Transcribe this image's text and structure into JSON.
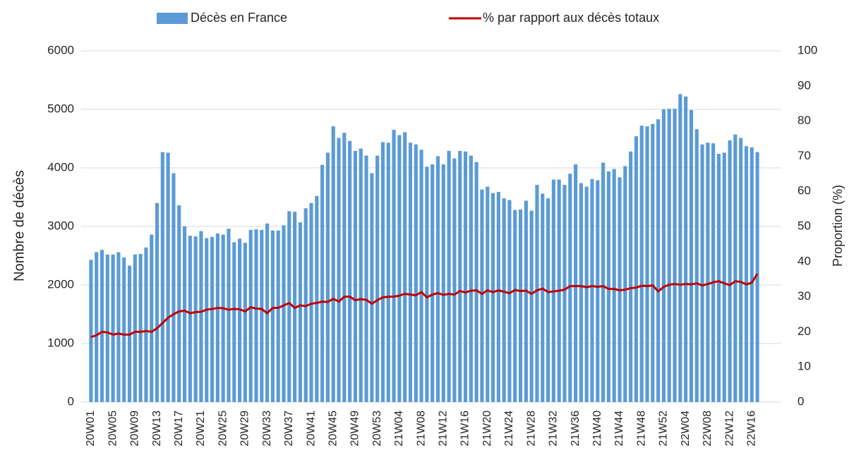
{
  "chart_data": {
    "type": "bar",
    "categories": [
      "20W01",
      null,
      null,
      null,
      "20W05",
      null,
      null,
      null,
      "20W09",
      null,
      null,
      null,
      "20W13",
      null,
      null,
      null,
      "20W17",
      null,
      null,
      null,
      "20W21",
      null,
      null,
      null,
      "20W25",
      null,
      null,
      null,
      "20W29",
      null,
      null,
      null,
      "20W33",
      null,
      null,
      null,
      "20W37",
      null,
      null,
      null,
      "20W41",
      null,
      null,
      null,
      "20W45",
      null,
      null,
      null,
      "20W49",
      null,
      null,
      null,
      "20W53",
      null,
      null,
      null,
      "21W04",
      null,
      null,
      null,
      "21W08",
      null,
      null,
      null,
      "21W12",
      null,
      null,
      null,
      "21W16",
      null,
      null,
      null,
      "21W20",
      null,
      null,
      null,
      "21W24",
      null,
      null,
      null,
      "21W28",
      null,
      null,
      null,
      "21W32",
      null,
      null,
      null,
      "21W36",
      null,
      null,
      null,
      "21W40",
      null,
      null,
      null,
      "21W44",
      null,
      null,
      null,
      "21W48",
      null,
      null,
      null,
      "21W52",
      null,
      null,
      null,
      "22W04",
      null,
      null,
      null,
      "22W08",
      null,
      null,
      null,
      "22W12",
      null,
      null,
      null,
      "22W16",
      null
    ],
    "series": [
      {
        "name": "Décès en France",
        "color": "#5b9bd5",
        "type": "bar",
        "values": [
          2430,
          2560,
          2600,
          2520,
          2520,
          2560,
          2470,
          2330,
          2520,
          2530,
          2640,
          2860,
          3400,
          4270,
          4260,
          3910,
          3360,
          3000,
          2840,
          2830,
          2920,
          2800,
          2820,
          2880,
          2860,
          2960,
          2730,
          2790,
          2720,
          2940,
          2950,
          2940,
          3050,
          2930,
          2930,
          3020,
          3260,
          3250,
          3070,
          3310,
          3400,
          3520,
          4050,
          4260,
          4710,
          4510,
          4600,
          4460,
          4290,
          4330,
          4210,
          3910,
          4210,
          4440,
          4430,
          4650,
          4560,
          4610,
          4430,
          4400,
          4310,
          4020,
          4060,
          4200,
          4060,
          4290,
          4160,
          4290,
          4280,
          4210,
          4100,
          3630,
          3680,
          3570,
          3590,
          3480,
          3450,
          3280,
          3290,
          3440,
          3270,
          3710,
          3560,
          3480,
          3800,
          3800,
          3710,
          3900,
          4060,
          3740,
          3680,
          3810,
          3790,
          4090,
          3940,
          3980,
          3840,
          4030,
          4280,
          4540,
          4720,
          4710,
          4750,
          4830,
          5000,
          5010,
          5010,
          5260,
          5220,
          4990,
          4660,
          4400,
          4430,
          4420,
          4240,
          4260,
          4470,
          4570,
          4510,
          4370,
          4350,
          4270
        ]
      },
      {
        "name": "% par rapport aux décès totaux",
        "color": "#c00000",
        "type": "line",
        "axis": "y2",
        "values": [
          18.5,
          19,
          20,
          19.8,
          19.2,
          19.5,
          19.2,
          19.2,
          20,
          20,
          20.2,
          20,
          21,
          22.5,
          24,
          25,
          25.8,
          26,
          25.3,
          25.6,
          25.7,
          26.3,
          26.5,
          26.8,
          26.7,
          26.3,
          26.5,
          26.4,
          25.8,
          27,
          26.6,
          26.5,
          25.3,
          26.8,
          26.8,
          27.5,
          28.2,
          26.8,
          27.5,
          27.3,
          28,
          28.2,
          28.6,
          28.5,
          29.4,
          28.6,
          30,
          30,
          29,
          29.3,
          29.1,
          28,
          29,
          29.8,
          30,
          30,
          30.3,
          30.8,
          30.6,
          30.4,
          31.3,
          29.8,
          30.6,
          31,
          30.5,
          30.8,
          30.6,
          31.6,
          31.2,
          31.7,
          31.8,
          30.8,
          31.8,
          31.3,
          31.8,
          31.4,
          31,
          31.9,
          31.6,
          31.7,
          30.8,
          31.8,
          32.3,
          31.3,
          31.5,
          31.7,
          32,
          33,
          33,
          33,
          32.7,
          33,
          32.8,
          33,
          32.2,
          32.2,
          31.8,
          32,
          32.4,
          32.6,
          33.1,
          33,
          33.2,
          31.5,
          32.8,
          33.4,
          33.6,
          33.4,
          33.6,
          33.5,
          33.8,
          33.2,
          33.6,
          34.1,
          34.4,
          33.8,
          33.3,
          34.4,
          34.2,
          33.5,
          34,
          36.5
        ]
      }
    ],
    "ylabel": "Nombre de décès",
    "y2label": "Proportion (%)",
    "ylim": [
      0,
      6000
    ],
    "yticks": [
      0,
      1000,
      2000,
      3000,
      4000,
      5000,
      6000
    ],
    "y2lim": [
      0,
      100
    ],
    "y2ticks": [
      0,
      10,
      20,
      30,
      40,
      50,
      60,
      70,
      80,
      90,
      100
    ],
    "grid": true,
    "legend": "top"
  }
}
